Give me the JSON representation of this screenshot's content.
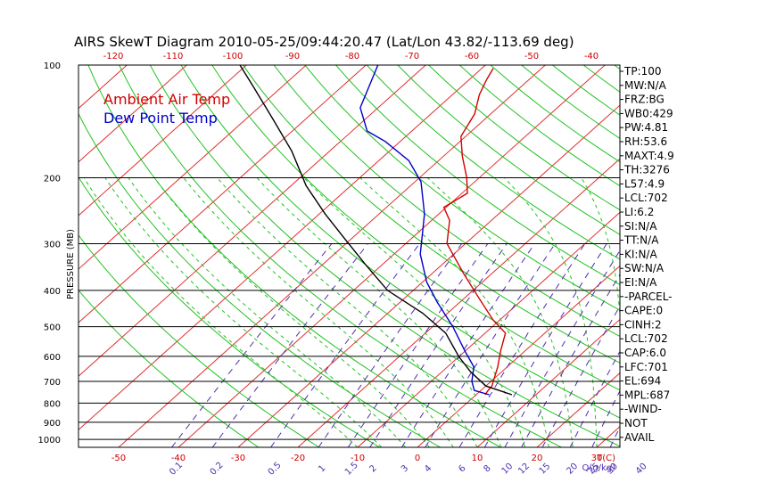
{
  "chart_data": {
    "type": "line",
    "title": "AIRS SkewT Diagram 2010-05-25/09:44:20.47 (Lat/Lon 43.82/-113.69 deg)",
    "ylabel": "PRESSURE (MB)",
    "pressure_ticks": [
      "100",
      "200",
      "300",
      "400",
      "500",
      "600",
      "700",
      "800",
      "900",
      "1000"
    ],
    "bottom_temp_ticks": [
      "-50",
      "-40",
      "-30",
      "-20",
      "-10",
      "0",
      "10",
      "20",
      "30"
    ],
    "bottom_temp_unit": "T(C)",
    "top_temp_ticks": [
      "-120",
      "-110",
      "-100",
      "-90",
      "-80",
      "-70",
      "-60",
      "-50",
      "-40"
    ],
    "mixing_ratio_ticks": [
      "0.1",
      "0.2",
      "0.5",
      "1",
      "1.5",
      "2",
      "3",
      "4",
      "6",
      "8",
      "10",
      "12",
      "15",
      "20",
      "25",
      "30",
      "40"
    ],
    "mixing_ratio_unit": "Q(g/kg)",
    "ylim": [
      1050,
      100
    ],
    "yscale": "log",
    "legend": [
      {
        "name": "Ambient Air Temp",
        "color": "#d40000"
      },
      {
        "name": "Dew Point Temp",
        "color": "#0000cc"
      }
    ],
    "series": [
      {
        "name": "Ambient Air Temp",
        "color": "#d40000",
        "points": [
          [
            1.5,
            760
          ],
          [
            1.2,
            740
          ],
          [
            1.0,
            720
          ],
          [
            -1.6,
            640
          ],
          [
            -4.1,
            580
          ],
          [
            -6.6,
            520
          ],
          [
            -11.1,
            480
          ],
          [
            -17.5,
            420
          ],
          [
            -24.8,
            360
          ],
          [
            -33.1,
            300
          ],
          [
            -37.0,
            260
          ],
          [
            -40.4,
            240
          ],
          [
            -39.1,
            220
          ],
          [
            -42.1,
            200
          ],
          [
            -46.9,
            175
          ],
          [
            -50.8,
            155
          ],
          [
            -52.7,
            135
          ],
          [
            -55.5,
            120
          ],
          [
            -57.0,
            110
          ],
          [
            -58.1,
            102
          ]
        ]
      },
      {
        "name": "Dew Point Temp",
        "color": "#0000cc",
        "points": [
          [
            2.2,
            760
          ],
          [
            -1.1,
            740
          ],
          [
            -3.2,
            700
          ],
          [
            -5.6,
            640
          ],
          [
            -10.1,
            580
          ],
          [
            -16.6,
            500
          ],
          [
            -23.8,
            430
          ],
          [
            -29.3,
            380
          ],
          [
            -35.6,
            320
          ],
          [
            -42.4,
            250
          ],
          [
            -49.0,
            205
          ],
          [
            -55.0,
            180
          ],
          [
            -62.5,
            160
          ],
          [
            -67.5,
            150
          ],
          [
            -73.0,
            130
          ],
          [
            -78.0,
            100
          ]
        ]
      },
      {
        "name": "",
        "color": "#000000",
        "points": [
          [
            6.0,
            760
          ],
          [
            0.0,
            720
          ],
          [
            -5.2,
            660
          ],
          [
            -10.1,
            600
          ],
          [
            -16.6,
            520
          ],
          [
            -24.2,
            460
          ],
          [
            -34.3,
            400
          ],
          [
            -43.0,
            340
          ],
          [
            -51.3,
            290
          ],
          [
            -59.0,
            250
          ],
          [
            -67.5,
            210
          ],
          [
            -76.3,
            170
          ],
          [
            -85.3,
            140
          ],
          [
            -94.5,
            115
          ],
          [
            -101.1,
            100
          ]
        ]
      }
    ],
    "indices": [
      "TP:100",
      "MW:N/A",
      "FRZ:BG",
      "WB0:429",
      "PW:4.81",
      "RH:53.6",
      "MAXT:4.9",
      "TH:3276",
      "L57:4.9",
      "LCL:702",
      "LI:6.2",
      "SI:N/A",
      "TT:N/A",
      "KI:N/A",
      "SW:N/A",
      "EI:N/A",
      "-PARCEL-",
      "CAPE:0",
      "CINH:2",
      "LCL:702",
      "CAP:6.0",
      "LFC:701",
      "EL:694",
      "MPL:687",
      "-WIND-",
      "NOT",
      "AVAIL"
    ]
  }
}
